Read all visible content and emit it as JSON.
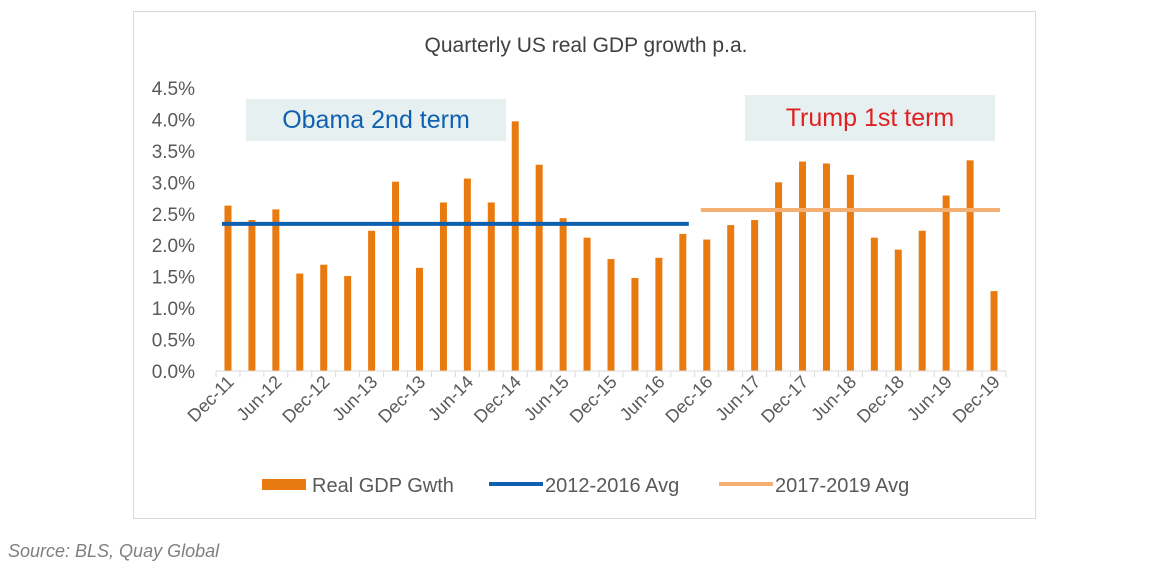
{
  "chart_data": {
    "type": "bar",
    "title": "Quarterly US real GDP growth p.a.",
    "categories": [
      "Dec-11",
      "Mar-12",
      "Jun-12",
      "Sep-12",
      "Dec-12",
      "Mar-13",
      "Jun-13",
      "Sep-13",
      "Dec-13",
      "Mar-14",
      "Jun-14",
      "Sep-14",
      "Dec-14",
      "Mar-15",
      "Jun-15",
      "Sep-15",
      "Dec-15",
      "Mar-16",
      "Jun-16",
      "Sep-16",
      "Dec-16",
      "Mar-17",
      "Jun-17",
      "Sep-17",
      "Dec-17",
      "Mar-18",
      "Jun-18",
      "Sep-18",
      "Dec-18",
      "Mar-19",
      "Jun-19",
      "Sep-19",
      "Dec-19"
    ],
    "tick_labels": [
      "Dec-11",
      "Jun-12",
      "Dec-12",
      "Jun-13",
      "Dec-13",
      "Jun-14",
      "Dec-14",
      "Jun-15",
      "Dec-15",
      "Jun-16",
      "Dec-16",
      "Jun-17",
      "Dec-17",
      "Jun-18",
      "Dec-18",
      "Jun-19",
      "Dec-19"
    ],
    "yticks": [
      "0.0%",
      "0.5%",
      "1.0%",
      "1.5%",
      "2.0%",
      "2.5%",
      "3.0%",
      "3.5%",
      "4.0%",
      "4.5%"
    ],
    "ylim": [
      0,
      4.5
    ],
    "grid": false,
    "legend_position": "bottom",
    "series": [
      {
        "name": "Real GDP Gwth",
        "type": "bar",
        "color": "#e97a10",
        "values": [
          2.63,
          2.4,
          2.57,
          1.55,
          1.69,
          1.51,
          2.23,
          3.01,
          1.64,
          2.68,
          3.06,
          2.68,
          3.97,
          3.28,
          2.43,
          2.12,
          1.78,
          1.48,
          1.8,
          2.18,
          2.09,
          2.32,
          2.4,
          3.0,
          3.33,
          3.3,
          3.12,
          2.12,
          1.93,
          2.23,
          2.79,
          3.35,
          1.27
        ]
      },
      {
        "name": "2012-2016 Avg",
        "type": "line",
        "color": "#0f5fb0",
        "value": 2.34,
        "x_start": "Dec-11",
        "x_end": "Sep-16"
      },
      {
        "name": "2017-2019 Avg",
        "type": "line",
        "color": "#f4b073",
        "value": 2.56,
        "x_start": "Dec-16",
        "x_end": "Dec-19"
      }
    ],
    "annotations": [
      {
        "text": "Obama 2nd term",
        "color": "#1060b0",
        "background": "#e6f0f1"
      },
      {
        "text": "Trump 1st term",
        "color": "#e02020",
        "background": "#e6f0f1"
      }
    ]
  },
  "source": "Source:  BLS, Quay Global"
}
